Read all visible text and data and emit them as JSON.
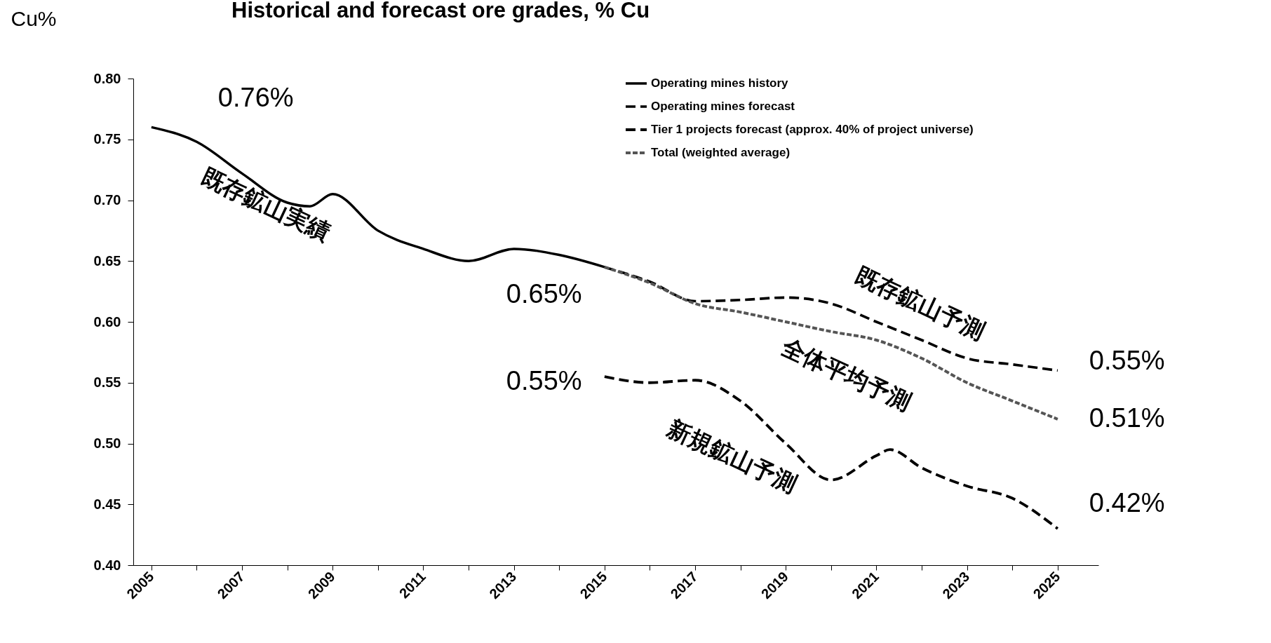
{
  "chart_data": {
    "type": "line",
    "title": "Historical and forecast ore grades, % Cu",
    "ylabel": "Cu%",
    "xlim": [
      2004.6,
      2025.9
    ],
    "xticks": [
      2005,
      {
        "value": 2006,
        "label": null
      },
      2007,
      {
        "value": 2008,
        "label": null
      },
      2009,
      {
        "value": 2010,
        "label": null
      },
      2011,
      {
        "value": 2012,
        "label": null
      },
      2013,
      {
        "value": 2014,
        "label": null
      },
      2015,
      {
        "value": 2016,
        "label": null
      },
      2017,
      {
        "value": 2018,
        "label": null
      },
      2019,
      {
        "value": 2020,
        "label": null
      },
      2021,
      {
        "value": 2022,
        "label": null
      },
      2023,
      {
        "value": 2024,
        "label": null
      },
      2025
    ],
    "ylim": [
      0.4,
      0.8
    ],
    "yticks": [
      {
        "value": 0.4,
        "label": "0.40"
      },
      0.45,
      {
        "value": 0.5,
        "label": "0.50"
      },
      0.55,
      {
        "value": 0.6,
        "label": "0.60"
      },
      0.65,
      {
        "value": 0.7,
        "label": "0.70"
      },
      0.75,
      {
        "value": 0.8,
        "label": "0.80"
      }
    ],
    "grid": false,
    "legend": "top right",
    "series": [
      {
        "name": "Operating mines history",
        "color": "#000000",
        "line_style": "solid",
        "x": [
          2005,
          2006,
          2007,
          2008,
          2008.5,
          2009,
          2010,
          2011,
          2012,
          2013,
          2014,
          2015
        ],
        "values": [
          0.76,
          0.748,
          0.722,
          0.698,
          0.695,
          0.705,
          0.675,
          0.66,
          0.65,
          0.66,
          0.655,
          0.645
        ]
      },
      {
        "name": "Operating mines forecast",
        "color": "#000000",
        "line_style": "dashed",
        "x": [
          2015,
          2016,
          2017,
          2018,
          2019,
          2020,
          2021,
          2022,
          2023,
          2024,
          2025
        ],
        "values": [
          0.645,
          0.633,
          0.617,
          0.618,
          0.62,
          0.615,
          0.6,
          0.585,
          0.57,
          0.565,
          0.56
        ]
      },
      {
        "name": "Tier 1 projects forecast (approx. 40% of project universe)",
        "color": "#000000",
        "line_style": "dashed",
        "x": [
          2015,
          2016,
          2017,
          2018,
          2019,
          2020,
          2021,
          2021.3,
          2022,
          2023,
          2024,
          2025
        ],
        "values": [
          0.555,
          0.55,
          0.552,
          0.535,
          0.5,
          0.47,
          0.49,
          0.495,
          0.48,
          0.465,
          0.455,
          0.43
        ]
      },
      {
        "name": "Total (weighted average)",
        "color": "#555555",
        "line_style": "dotted",
        "x": [
          2015,
          2016,
          2017,
          2018,
          2019,
          2020,
          2021,
          2022,
          2023,
          2024,
          2025
        ],
        "values": [
          0.645,
          0.632,
          0.615,
          0.608,
          0.6,
          0.592,
          0.585,
          0.57,
          0.55,
          0.535,
          0.52
        ]
      }
    ],
    "annotations": [
      {
        "text": "0.76%",
        "x": 2005,
        "y": 0.76
      },
      {
        "text": "0.65%",
        "x": 2015,
        "y": 0.645
      },
      {
        "text": "0.55%",
        "x": 2015,
        "y": 0.555
      },
      {
        "text": "0.55%",
        "x": 2025,
        "y": 0.56
      },
      {
        "text": "0.51%",
        "x": 2025,
        "y": 0.52
      },
      {
        "text": "0.42%",
        "x": 2025,
        "y": 0.43
      },
      {
        "text": "既存鉱山実績",
        "x": 2009,
        "y": 0.705
      },
      {
        "text": "既存鉱山予測",
        "x": 2021,
        "y": 0.6
      },
      {
        "text": "全体平均予測",
        "x": 2021,
        "y": 0.585
      },
      {
        "text": "新規鉱山予測",
        "x": 2019,
        "y": 0.5
      }
    ]
  }
}
